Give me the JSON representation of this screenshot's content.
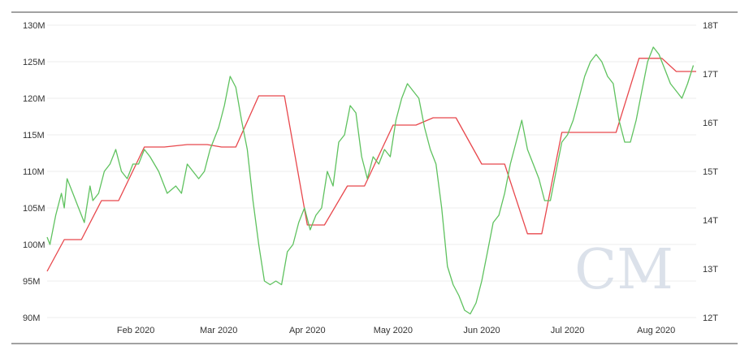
{
  "colors": {
    "series_a": "#e8474c",
    "series_b": "#5fc25f",
    "grid": "#ececec",
    "frame": "#444444",
    "watermark": "#dbe1ea"
  },
  "watermark_text": "CM",
  "chart_data": {
    "type": "line",
    "grid": true,
    "legend": "none",
    "x_range": [
      "2020-01-01",
      "2020-08-15"
    ],
    "x_ticks": [
      {
        "date": "2020-02-01",
        "label": "Feb 2020"
      },
      {
        "date": "2020-03-01",
        "label": "Mar 2020"
      },
      {
        "date": "2020-04-01",
        "label": "Apr 2020"
      },
      {
        "date": "2020-05-01",
        "label": "May 2020"
      },
      {
        "date": "2020-06-01",
        "label": "Jun 2020"
      },
      {
        "date": "2020-07-01",
        "label": "Jul 2020"
      },
      {
        "date": "2020-08-01",
        "label": "Aug 2020"
      }
    ],
    "y_left": {
      "range": [
        90,
        130
      ],
      "unit": "M",
      "ticks": [
        "90M",
        "95M",
        "100M",
        "105M",
        "110M",
        "115M",
        "120M",
        "125M",
        "130M"
      ],
      "tick_values": [
        90,
        95,
        100,
        105,
        110,
        115,
        120,
        125,
        130
      ]
    },
    "y_right": {
      "range": [
        12,
        18
      ],
      "unit": "T",
      "ticks": [
        "12T",
        "13T",
        "14T",
        "15T",
        "16T",
        "17T",
        "18T"
      ],
      "tick_values": [
        12,
        13,
        14,
        15,
        16,
        17,
        18
      ]
    },
    "series": [
      {
        "axis": "right",
        "color": "#e8474c",
        "points": [
          [
            "2020-01-01",
            12.95
          ],
          [
            "2020-01-07",
            13.6
          ],
          [
            "2020-01-13",
            13.6
          ],
          [
            "2020-01-20",
            14.4
          ],
          [
            "2020-01-26",
            14.4
          ],
          [
            "2020-02-04",
            15.5
          ],
          [
            "2020-02-11",
            15.5
          ],
          [
            "2020-02-19",
            15.55
          ],
          [
            "2020-02-26",
            15.55
          ],
          [
            "2020-03-02",
            15.5
          ],
          [
            "2020-03-07",
            15.5
          ],
          [
            "2020-03-15",
            16.55
          ],
          [
            "2020-03-24",
            16.55
          ],
          [
            "2020-04-01",
            13.9
          ],
          [
            "2020-04-07",
            13.9
          ],
          [
            "2020-04-15",
            14.7
          ],
          [
            "2020-04-21",
            14.7
          ],
          [
            "2020-05-01",
            15.95
          ],
          [
            "2020-05-09",
            15.95
          ],
          [
            "2020-05-15",
            16.1
          ],
          [
            "2020-05-23",
            16.1
          ],
          [
            "2020-06-01",
            15.15
          ],
          [
            "2020-06-09",
            15.15
          ],
          [
            "2020-06-17",
            13.72
          ],
          [
            "2020-06-22",
            13.72
          ],
          [
            "2020-06-29",
            15.8
          ],
          [
            "2020-07-10",
            15.8
          ],
          [
            "2020-07-18",
            15.8
          ],
          [
            "2020-07-26",
            17.32
          ],
          [
            "2020-08-03",
            17.32
          ],
          [
            "2020-08-08",
            17.05
          ],
          [
            "2020-08-15",
            17.05
          ]
        ]
      },
      {
        "axis": "left",
        "color": "#5fc25f",
        "points": [
          [
            "2020-01-01",
            101
          ],
          [
            "2020-01-02",
            100
          ],
          [
            "2020-01-04",
            104
          ],
          [
            "2020-01-06",
            107
          ],
          [
            "2020-01-07",
            105
          ],
          [
            "2020-01-08",
            109
          ],
          [
            "2020-01-10",
            107
          ],
          [
            "2020-01-12",
            105
          ],
          [
            "2020-01-14",
            103
          ],
          [
            "2020-01-16",
            108
          ],
          [
            "2020-01-17",
            106
          ],
          [
            "2020-01-19",
            107
          ],
          [
            "2020-01-21",
            110
          ],
          [
            "2020-01-23",
            111
          ],
          [
            "2020-01-25",
            113
          ],
          [
            "2020-01-27",
            110
          ],
          [
            "2020-01-29",
            109
          ],
          [
            "2020-01-31",
            111
          ],
          [
            "2020-02-02",
            111
          ],
          [
            "2020-02-04",
            113
          ],
          [
            "2020-02-06",
            112
          ],
          [
            "2020-02-09",
            110
          ],
          [
            "2020-02-12",
            107
          ],
          [
            "2020-02-15",
            108
          ],
          [
            "2020-02-17",
            107
          ],
          [
            "2020-02-19",
            111
          ],
          [
            "2020-02-21",
            110
          ],
          [
            "2020-02-23",
            109
          ],
          [
            "2020-02-25",
            110
          ],
          [
            "2020-02-27",
            113
          ],
          [
            "2020-03-01",
            116
          ],
          [
            "2020-03-03",
            119
          ],
          [
            "2020-03-05",
            123
          ],
          [
            "2020-03-07",
            121.5
          ],
          [
            "2020-03-09",
            117
          ],
          [
            "2020-03-11",
            113
          ],
          [
            "2020-03-13",
            106
          ],
          [
            "2020-03-15",
            100
          ],
          [
            "2020-03-17",
            95
          ],
          [
            "2020-03-19",
            94.5
          ],
          [
            "2020-03-21",
            95
          ],
          [
            "2020-03-23",
            94.5
          ],
          [
            "2020-03-25",
            99
          ],
          [
            "2020-03-27",
            100
          ],
          [
            "2020-03-29",
            103
          ],
          [
            "2020-03-31",
            105
          ],
          [
            "2020-04-02",
            102
          ],
          [
            "2020-04-04",
            104
          ],
          [
            "2020-04-06",
            105
          ],
          [
            "2020-04-08",
            110
          ],
          [
            "2020-04-10",
            108
          ],
          [
            "2020-04-12",
            114
          ],
          [
            "2020-04-14",
            115
          ],
          [
            "2020-04-16",
            119
          ],
          [
            "2020-04-18",
            118
          ],
          [
            "2020-04-20",
            112
          ],
          [
            "2020-04-22",
            109
          ],
          [
            "2020-04-24",
            112
          ],
          [
            "2020-04-26",
            111
          ],
          [
            "2020-04-28",
            113
          ],
          [
            "2020-04-30",
            112
          ],
          [
            "2020-05-02",
            117
          ],
          [
            "2020-05-04",
            120
          ],
          [
            "2020-05-06",
            122
          ],
          [
            "2020-05-08",
            121
          ],
          [
            "2020-05-10",
            120
          ],
          [
            "2020-05-12",
            116
          ],
          [
            "2020-05-14",
            113
          ],
          [
            "2020-05-16",
            111
          ],
          [
            "2020-05-18",
            105
          ],
          [
            "2020-05-20",
            97
          ],
          [
            "2020-05-22",
            94.5
          ],
          [
            "2020-05-24",
            93
          ],
          [
            "2020-05-26",
            91
          ],
          [
            "2020-05-28",
            90.5
          ],
          [
            "2020-05-30",
            92
          ],
          [
            "2020-06-01",
            95
          ],
          [
            "2020-06-03",
            99
          ],
          [
            "2020-06-05",
            103
          ],
          [
            "2020-06-07",
            104
          ],
          [
            "2020-06-09",
            107
          ],
          [
            "2020-06-11",
            111
          ],
          [
            "2020-06-13",
            114
          ],
          [
            "2020-06-15",
            117
          ],
          [
            "2020-06-17",
            113
          ],
          [
            "2020-06-19",
            111
          ],
          [
            "2020-06-21",
            109
          ],
          [
            "2020-06-23",
            106
          ],
          [
            "2020-06-25",
            106
          ],
          [
            "2020-06-27",
            110
          ],
          [
            "2020-06-29",
            114
          ],
          [
            "2020-07-01",
            115
          ],
          [
            "2020-07-03",
            117
          ],
          [
            "2020-07-05",
            120
          ],
          [
            "2020-07-07",
            123
          ],
          [
            "2020-07-09",
            125
          ],
          [
            "2020-07-11",
            126
          ],
          [
            "2020-07-13",
            125
          ],
          [
            "2020-07-15",
            123
          ],
          [
            "2020-07-17",
            122
          ],
          [
            "2020-07-19",
            117
          ],
          [
            "2020-07-21",
            114
          ],
          [
            "2020-07-23",
            114
          ],
          [
            "2020-07-25",
            117
          ],
          [
            "2020-07-27",
            121
          ],
          [
            "2020-07-29",
            125
          ],
          [
            "2020-07-31",
            127
          ],
          [
            "2020-08-02",
            126
          ],
          [
            "2020-08-04",
            124
          ],
          [
            "2020-08-06",
            122
          ],
          [
            "2020-08-08",
            121
          ],
          [
            "2020-08-10",
            120
          ],
          [
            "2020-08-12",
            122
          ],
          [
            "2020-08-14",
            124.5
          ]
        ]
      }
    ]
  }
}
